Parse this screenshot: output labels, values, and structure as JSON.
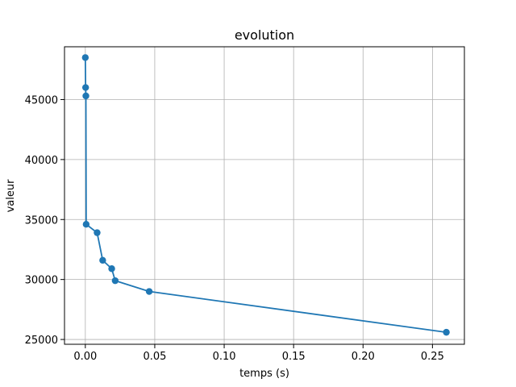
{
  "chart_data": {
    "type": "line",
    "title": "evolution",
    "xlabel": "temps (s)",
    "ylabel": "valeur",
    "xlim": [
      -0.015,
      0.273
    ],
    "ylim": [
      24600,
      49400
    ],
    "xticks": [
      0.0,
      0.05,
      0.1,
      0.15,
      0.2,
      0.25
    ],
    "xtick_labels": [
      "0.00",
      "0.05",
      "0.10",
      "0.15",
      "0.20",
      "0.25"
    ],
    "yticks": [
      25000,
      30000,
      35000,
      40000,
      45000
    ],
    "ytick_labels": [
      "25000",
      "30000",
      "35000",
      "40000",
      "45000"
    ],
    "grid": true,
    "series": [
      {
        "color": "#1f77b4",
        "marker": "circle",
        "points": [
          {
            "x": 0.0,
            "y": 48500
          },
          {
            "x": 0.0002,
            "y": 46000
          },
          {
            "x": 0.0004,
            "y": 45300
          },
          {
            "x": 0.0006,
            "y": 34600
          },
          {
            "x": 0.0085,
            "y": 33900
          },
          {
            "x": 0.0125,
            "y": 31600
          },
          {
            "x": 0.019,
            "y": 30900
          },
          {
            "x": 0.0215,
            "y": 29900
          },
          {
            "x": 0.046,
            "y": 29000
          },
          {
            "x": 0.26,
            "y": 25600
          }
        ]
      }
    ]
  }
}
